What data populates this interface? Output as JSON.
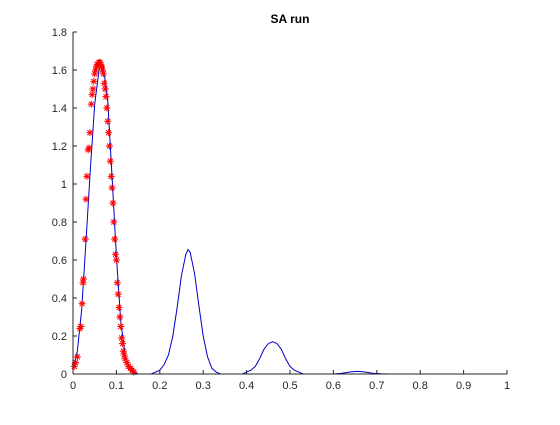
{
  "chart_data": {
    "type": "line",
    "title": "SA run",
    "xlabel": "",
    "ylabel": "",
    "xlim": [
      0,
      1
    ],
    "ylim": [
      0,
      1.8
    ],
    "xticks": [
      0,
      0.1,
      0.2,
      0.3,
      0.4,
      0.5,
      0.6,
      0.7,
      0.8,
      0.9,
      1
    ],
    "yticks": [
      0,
      0.2,
      0.4,
      0.6,
      0.8,
      1,
      1.2,
      1.4,
      1.6,
      1.8
    ],
    "xtick_labels": [
      "0",
      "0.1",
      "0.2",
      "0.3",
      "0.4",
      "0.5",
      "0.6",
      "0.7",
      "0.8",
      "0.9",
      "1"
    ],
    "ytick_labels": [
      "0",
      "0.2",
      "0.4",
      "0.6",
      "0.8",
      "1",
      "1.2",
      "1.4",
      "1.6",
      "1.8"
    ],
    "grid": false,
    "box": false,
    "series": [
      {
        "type": "line",
        "color": "#0000cc",
        "x": [
          0,
          0.01,
          0.02,
          0.03,
          0.04,
          0.05,
          0.06,
          0.065,
          0.07,
          0.08,
          0.09,
          0.1,
          0.11,
          0.12,
          0.13,
          0.14,
          0.15,
          0.16,
          0.17,
          0.18,
          0.19,
          0.2,
          0.21,
          0.22,
          0.23,
          0.24,
          0.25,
          0.26,
          0.265,
          0.27,
          0.28,
          0.29,
          0.3,
          0.31,
          0.32,
          0.33,
          0.34,
          0.35,
          0.36,
          0.37,
          0.38,
          0.39,
          0.4,
          0.41,
          0.42,
          0.43,
          0.44,
          0.45,
          0.46,
          0.47,
          0.48,
          0.49,
          0.5,
          0.51,
          0.52,
          0.53,
          0.54,
          0.55,
          0.56,
          0.57,
          0.58,
          0.59,
          0.6,
          0.62,
          0.64,
          0.655,
          0.67,
          0.69,
          0.71,
          0.73,
          0.76,
          0.8,
          0.85,
          0.9,
          0.95,
          1.0
        ],
        "y": [
          0.03,
          0.12,
          0.34,
          0.7,
          1.08,
          1.42,
          1.6,
          1.64,
          1.62,
          1.44,
          1.04,
          0.62,
          0.28,
          0.1,
          0.03,
          0.01,
          0.0,
          0.0,
          0.0,
          0.0,
          0.01,
          0.02,
          0.05,
          0.1,
          0.2,
          0.35,
          0.52,
          0.63,
          0.655,
          0.64,
          0.53,
          0.36,
          0.2,
          0.09,
          0.03,
          0.01,
          0.0,
          0.0,
          0.0,
          0.0,
          0.0,
          0.0,
          0.01,
          0.02,
          0.04,
          0.08,
          0.13,
          0.16,
          0.17,
          0.16,
          0.13,
          0.08,
          0.04,
          0.02,
          0.01,
          0.0,
          0.0,
          0.0,
          0.0,
          0.0,
          0.0,
          0.0,
          0.0,
          0.004,
          0.011,
          0.014,
          0.011,
          0.004,
          0.001,
          0.0,
          0.0,
          0.0,
          0.0,
          0.0,
          0.0,
          0.0
        ]
      },
      {
        "type": "scatter",
        "marker": "*",
        "color": "#ff0000",
        "points": [
          [
            0.003,
            0.04
          ],
          [
            0.006,
            0.06
          ],
          [
            0.01,
            0.09
          ],
          [
            0.016,
            0.24
          ],
          [
            0.018,
            0.25
          ],
          [
            0.021,
            0.37
          ],
          [
            0.023,
            0.48
          ],
          [
            0.024,
            0.5
          ],
          [
            0.028,
            0.71
          ],
          [
            0.03,
            0.92
          ],
          [
            0.032,
            1.04
          ],
          [
            0.035,
            1.18
          ],
          [
            0.037,
            1.19
          ],
          [
            0.039,
            1.27
          ],
          [
            0.042,
            1.42
          ],
          [
            0.044,
            1.47
          ],
          [
            0.046,
            1.5
          ],
          [
            0.048,
            1.54
          ],
          [
            0.05,
            1.58
          ],
          [
            0.052,
            1.6
          ],
          [
            0.054,
            1.62
          ],
          [
            0.056,
            1.63
          ],
          [
            0.058,
            1.63
          ],
          [
            0.06,
            1.64
          ],
          [
            0.062,
            1.64
          ],
          [
            0.064,
            1.63
          ],
          [
            0.066,
            1.62
          ],
          [
            0.068,
            1.6
          ],
          [
            0.07,
            1.58
          ],
          [
            0.072,
            1.53
          ],
          [
            0.074,
            1.5
          ],
          [
            0.076,
            1.46
          ],
          [
            0.078,
            1.4
          ],
          [
            0.08,
            1.33
          ],
          [
            0.082,
            1.27
          ],
          [
            0.084,
            1.2
          ],
          [
            0.086,
            1.12
          ],
          [
            0.088,
            1.04
          ],
          [
            0.09,
            0.98
          ],
          [
            0.092,
            0.9
          ],
          [
            0.094,
            0.8
          ],
          [
            0.096,
            0.71
          ],
          [
            0.098,
            0.63
          ],
          [
            0.1,
            0.6
          ],
          [
            0.102,
            0.48
          ],
          [
            0.104,
            0.42
          ],
          [
            0.106,
            0.35
          ],
          [
            0.108,
            0.3
          ],
          [
            0.11,
            0.25
          ],
          [
            0.112,
            0.19
          ],
          [
            0.114,
            0.16
          ],
          [
            0.116,
            0.12
          ],
          [
            0.118,
            0.1
          ],
          [
            0.12,
            0.08
          ],
          [
            0.124,
            0.06
          ],
          [
            0.128,
            0.04
          ],
          [
            0.132,
            0.03
          ],
          [
            0.136,
            0.02
          ],
          [
            0.14,
            0.01
          ]
        ]
      }
    ]
  }
}
